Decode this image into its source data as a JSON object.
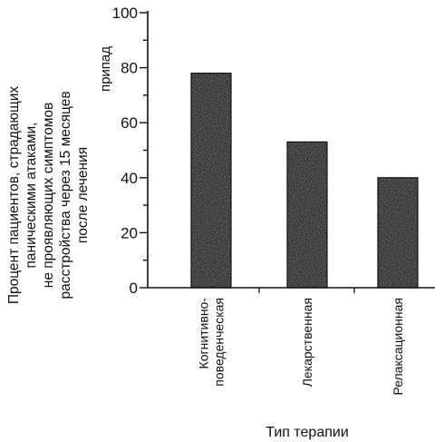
{
  "chart_data": {
    "type": "bar",
    "categories": [
      [
        "Когнитивно-",
        "поведенческая"
      ],
      [
        "Лекарственная"
      ],
      [
        "Релаксационная"
      ]
    ],
    "values": [
      78,
      53,
      40
    ],
    "title": "",
    "xlabel": "Тип терапии",
    "ylabel": [
      "Процент пациентов, страдающих",
      "паническими атаками,",
      "не проявляющих симптомов",
      "расстройства через 15 месяцев",
      "после лечения"
    ],
    "ylabel_extra": "припад",
    "ylim": [
      0,
      100
    ],
    "yticks": [
      0,
      20,
      40,
      60,
      80,
      100
    ],
    "grid": false,
    "bar_color": "#2a2a2a",
    "axis_color": "#111111"
  }
}
